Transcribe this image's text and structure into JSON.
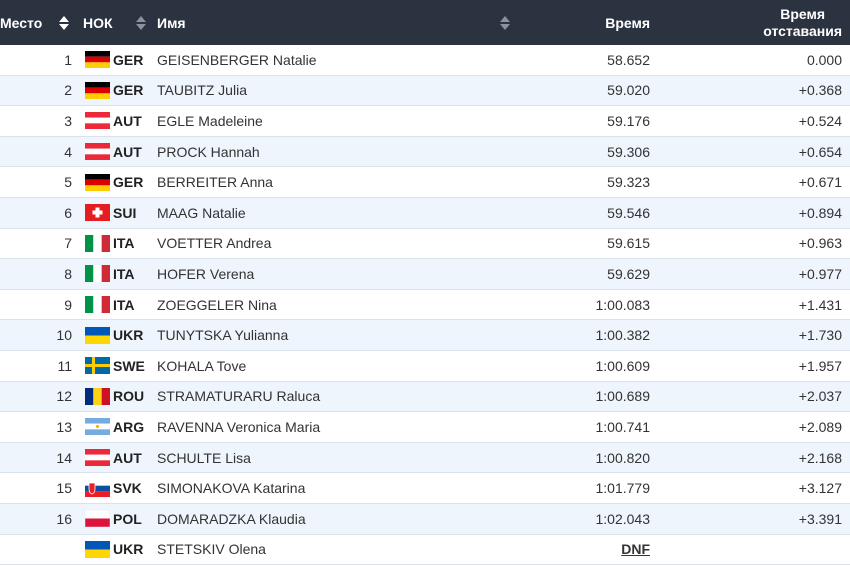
{
  "header": {
    "rank_label": "Место",
    "noc_label": "НОК",
    "name_label": "Имя",
    "time_label": "Время",
    "behind_label_line1": "Время",
    "behind_label_line2": "отставания"
  },
  "colors": {
    "header_bg": "#2b3340",
    "row_alt_bg": "#eef5fc",
    "row_border": "#d9e2ec"
  },
  "rows": [
    {
      "rank": "1",
      "noc": "GER",
      "flag": "germany-flag-icon",
      "name": "GEISENBERGER Natalie",
      "time": "58.652",
      "behind": "0.000"
    },
    {
      "rank": "2",
      "noc": "GER",
      "flag": "germany-flag-icon",
      "name": "TAUBITZ Julia",
      "time": "59.020",
      "behind": "+0.368"
    },
    {
      "rank": "3",
      "noc": "AUT",
      "flag": "austria-flag-icon",
      "name": "EGLE Madeleine",
      "time": "59.176",
      "behind": "+0.524"
    },
    {
      "rank": "4",
      "noc": "AUT",
      "flag": "austria-flag-icon",
      "name": "PROCK Hannah",
      "time": "59.306",
      "behind": "+0.654"
    },
    {
      "rank": "5",
      "noc": "GER",
      "flag": "germany-flag-icon",
      "name": "BERREITER Anna",
      "time": "59.323",
      "behind": "+0.671"
    },
    {
      "rank": "6",
      "noc": "SUI",
      "flag": "switzerland-flag-icon",
      "name": "MAAG Natalie",
      "time": "59.546",
      "behind": "+0.894"
    },
    {
      "rank": "7",
      "noc": "ITA",
      "flag": "italy-flag-icon",
      "name": "VOETTER Andrea",
      "time": "59.615",
      "behind": "+0.963"
    },
    {
      "rank": "8",
      "noc": "ITA",
      "flag": "italy-flag-icon",
      "name": "HOFER Verena",
      "time": "59.629",
      "behind": "+0.977"
    },
    {
      "rank": "9",
      "noc": "ITA",
      "flag": "italy-flag-icon",
      "name": "ZOEGGELER Nina",
      "time": "1:00.083",
      "behind": "+1.431"
    },
    {
      "rank": "10",
      "noc": "UKR",
      "flag": "ukraine-flag-icon",
      "name": "TUNYTSKA Yulianna",
      "time": "1:00.382",
      "behind": "+1.730"
    },
    {
      "rank": "11",
      "noc": "SWE",
      "flag": "sweden-flag-icon",
      "name": "KOHALA Tove",
      "time": "1:00.609",
      "behind": "+1.957"
    },
    {
      "rank": "12",
      "noc": "ROU",
      "flag": "romania-flag-icon",
      "name": "STRAMATURARU Raluca",
      "time": "1:00.689",
      "behind": "+2.037"
    },
    {
      "rank": "13",
      "noc": "ARG",
      "flag": "argentina-flag-icon",
      "name": "RAVENNA Veronica Maria",
      "time": "1:00.741",
      "behind": "+2.089"
    },
    {
      "rank": "14",
      "noc": "AUT",
      "flag": "austria-flag-icon",
      "name": "SCHULTE Lisa",
      "time": "1:00.820",
      "behind": "+2.168"
    },
    {
      "rank": "15",
      "noc": "SVK",
      "flag": "slovakia-flag-icon",
      "name": "SIMONAKOVA Katarina",
      "time": "1:01.779",
      "behind": "+3.127"
    },
    {
      "rank": "16",
      "noc": "POL",
      "flag": "poland-flag-icon",
      "name": "DOMARADZKA Klaudia",
      "time": "1:02.043",
      "behind": "+3.391"
    },
    {
      "rank": "",
      "noc": "UKR",
      "flag": "ukraine-flag-icon",
      "name": "STETSKIV Olena",
      "time": "DNF",
      "behind": ""
    }
  ]
}
